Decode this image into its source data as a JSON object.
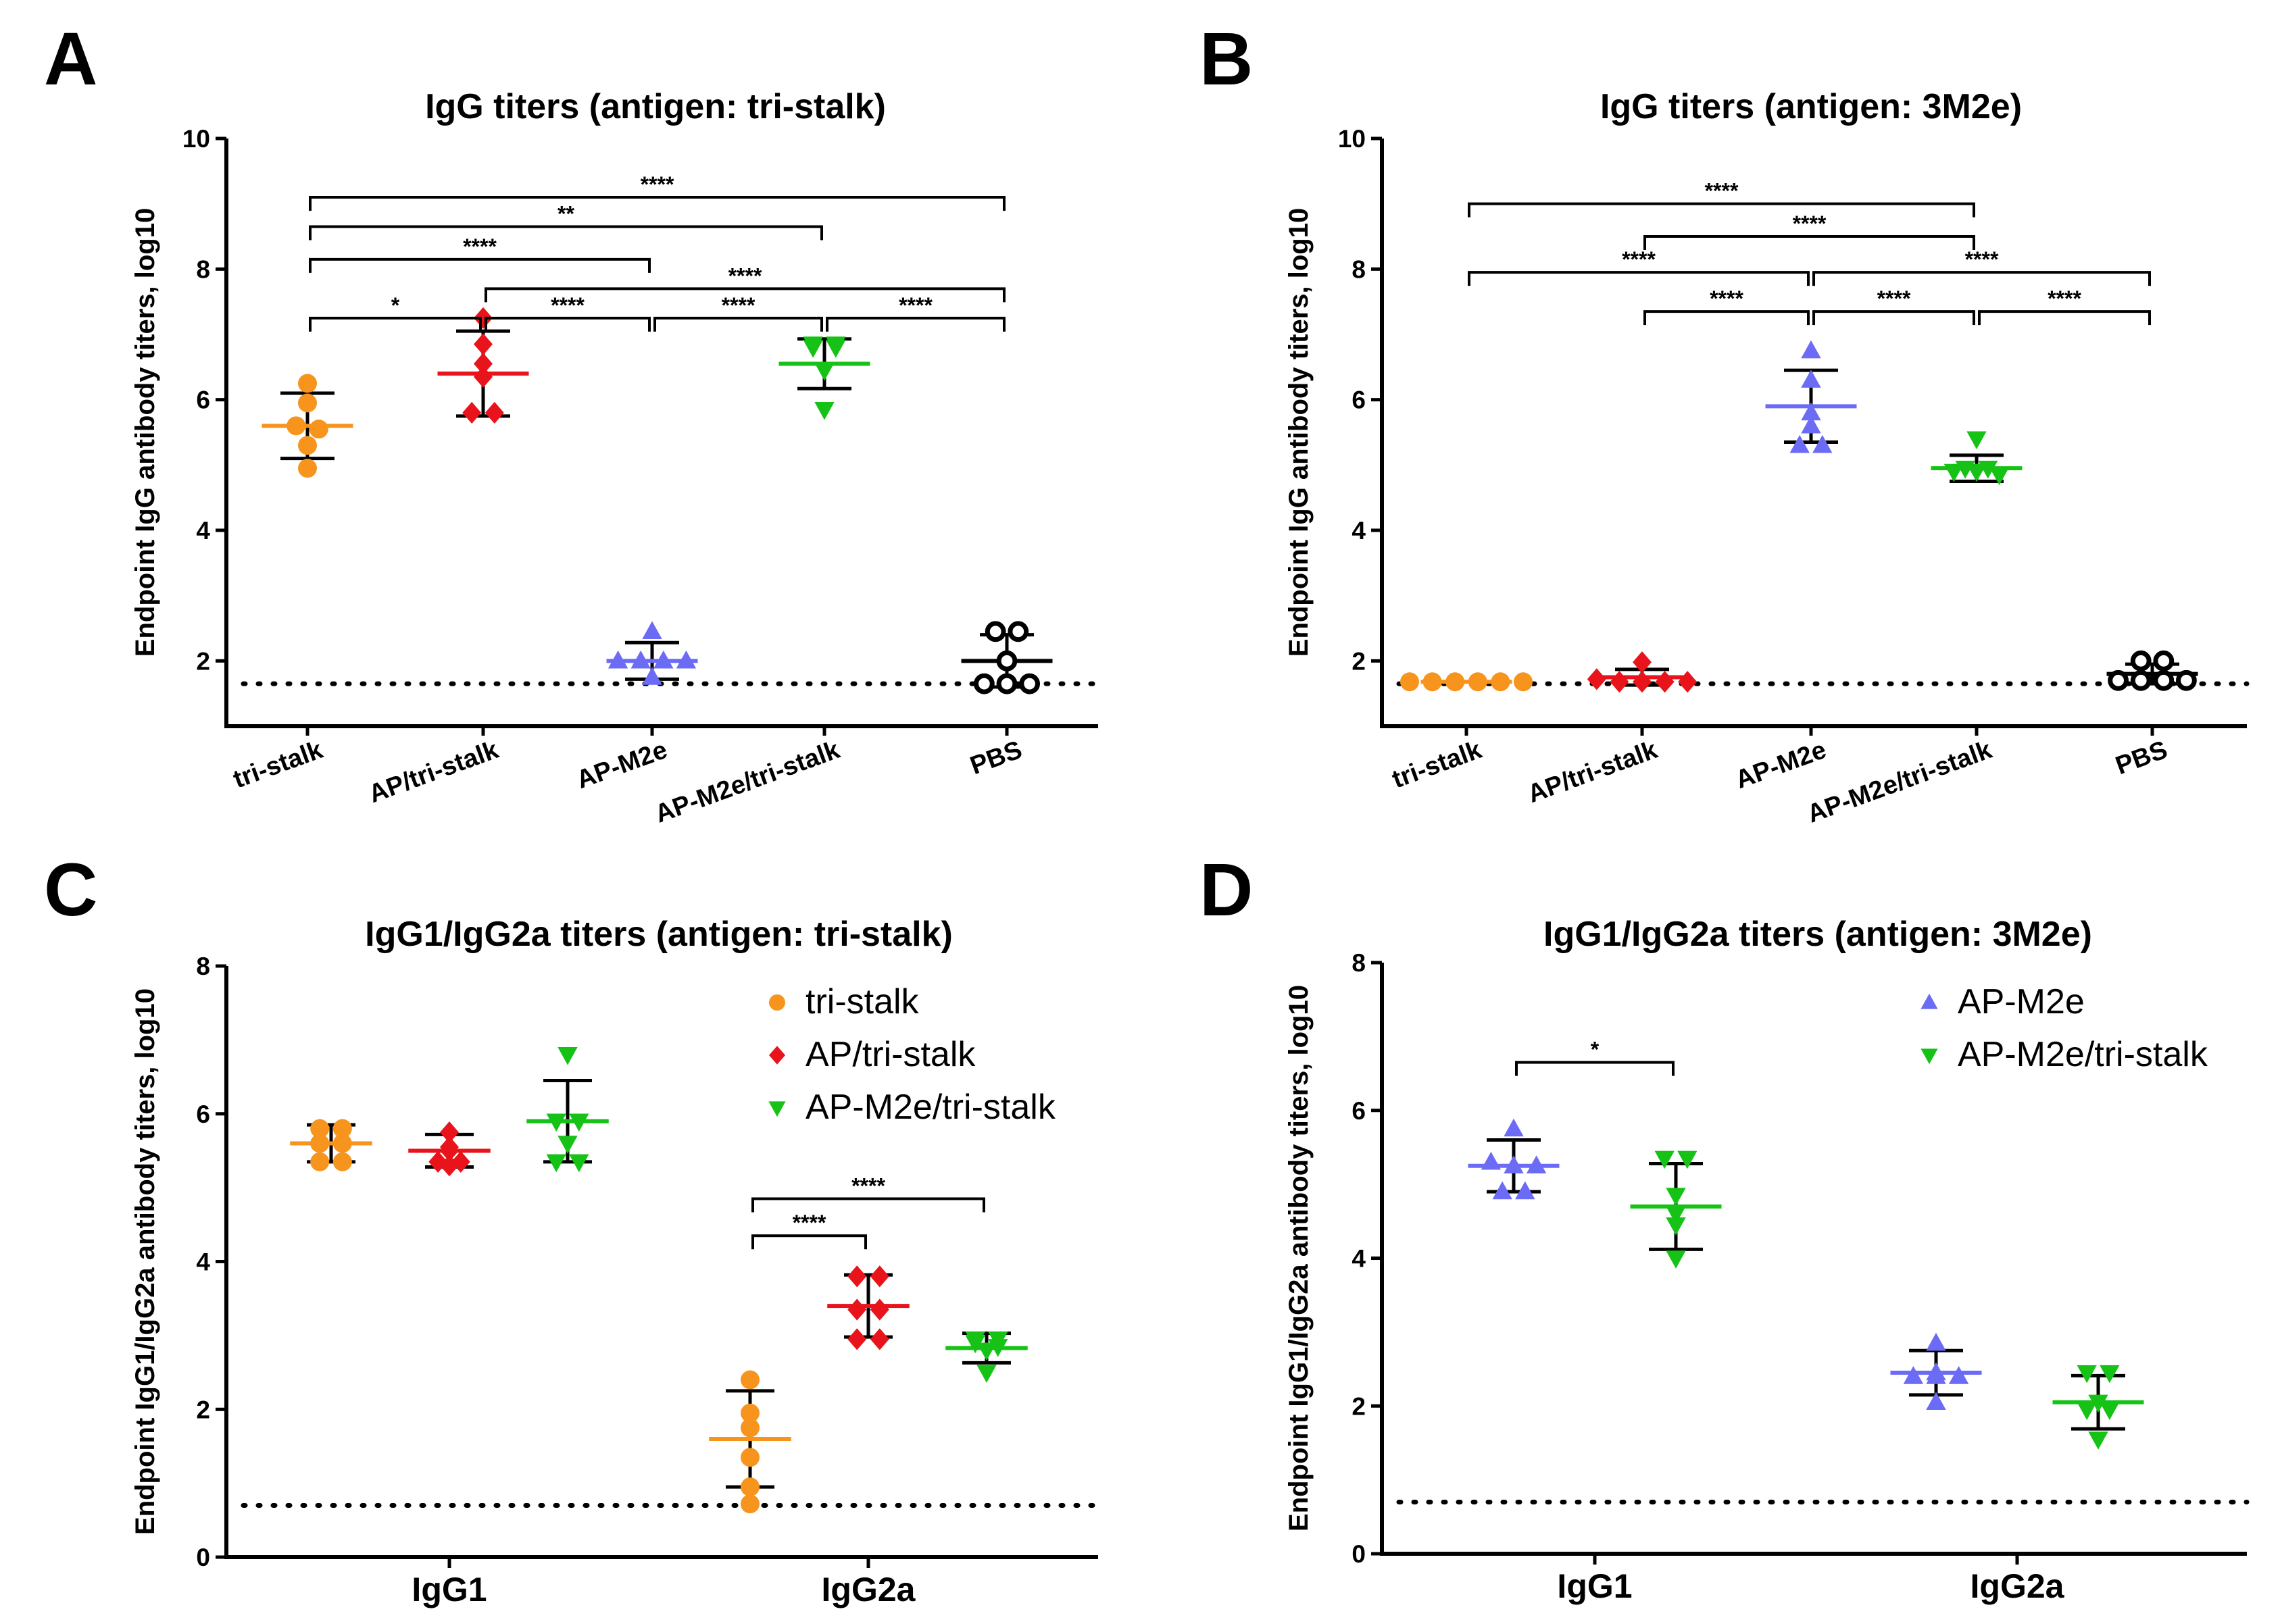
{
  "colors": {
    "tri-stalk": "#F7941D",
    "AP/tri-stalk": "#E8131B",
    "AP-M2e": "#6B6BF5",
    "AP-M2e/tri-stalk": "#17C217",
    "PBS": "#000000"
  },
  "chart_data": [
    {
      "id": "A",
      "type": "scatter",
      "label": "A",
      "title": "IgG titers (antigen: tri-stalk)",
      "xlabel": "",
      "ylabel": "Endpoint IgG antibody titers, log10",
      "ylim": [
        1,
        10
      ],
      "yticks": [
        "2",
        "4",
        "6",
        "8",
        "10"
      ],
      "detection_limit": 1.65,
      "xtick_style": "rotated",
      "categories": [
        "tri-stalk",
        "AP/tri-stalk",
        "AP-M2e",
        "AP-M2e/tri-stalk",
        "PBS"
      ],
      "groups": [
        {
          "name": "tri-stalk",
          "marker": "circle",
          "points": [
            6.25,
            5.95,
            5.6,
            5.55,
            5.3,
            4.95
          ],
          "mean": 5.6,
          "sd": 0.5
        },
        {
          "name": "AP/tri-stalk",
          "marker": "diamond",
          "points": [
            7.25,
            6.85,
            6.55,
            6.35,
            5.8,
            5.8
          ],
          "mean": 6.4,
          "sd": 0.65
        },
        {
          "name": "AP-M2e",
          "marker": "triangle-up",
          "points": [
            2.45,
            2.0,
            2.0,
            2.0,
            2.0,
            1.75
          ],
          "mean": 2.0,
          "sd": 0.28
        },
        {
          "name": "AP-M2e/tri-stalk",
          "marker": "triangle-down",
          "points": [
            6.85,
            6.85,
            6.8,
            6.8,
            6.45,
            5.85
          ],
          "mean": 6.55,
          "sd": 0.38
        },
        {
          "name": "PBS",
          "marker": "open-circle",
          "points": [
            2.45,
            2.45,
            2.0,
            1.65,
            1.65,
            1.65
          ],
          "mean": 2.0,
          "sd": 0.4
        }
      ],
      "brackets": [
        {
          "from": "tri-stalk",
          "to": "PBS",
          "y": 9.1,
          "label": "****"
        },
        {
          "from": "tri-stalk",
          "to": "AP-M2e/tri-stalk",
          "y": 8.65,
          "label": "**"
        },
        {
          "from": "tri-stalk",
          "to": "AP-M2e",
          "y": 8.15,
          "label": "****"
        },
        {
          "from": "AP/tri-stalk",
          "to": "PBS",
          "y": 7.7,
          "label": "****"
        },
        {
          "from": "tri-stalk",
          "to": "AP/tri-stalk",
          "y": 7.25,
          "label": "*"
        },
        {
          "from": "AP/tri-stalk",
          "to": "AP-M2e",
          "y": 7.25,
          "label": "****"
        },
        {
          "from": "AP-M2e",
          "to": "AP-M2e/tri-stalk",
          "y": 7.25,
          "label": "****"
        },
        {
          "from": "AP-M2e/tri-stalk",
          "to": "PBS",
          "y": 7.25,
          "label": "****"
        }
      ]
    },
    {
      "id": "B",
      "type": "scatter",
      "label": "B",
      "title": "IgG titers (antigen: 3M2e)",
      "xlabel": "",
      "ylabel": "Endpoint IgG antibody titers, log10",
      "ylim": [
        1,
        10
      ],
      "yticks": [
        "2",
        "4",
        "6",
        "8",
        "10"
      ],
      "detection_limit": 1.65,
      "xtick_style": "rotated",
      "categories": [
        "tri-stalk",
        "AP/tri-stalk",
        "AP-M2e",
        "AP-M2e/tri-stalk",
        "PBS"
      ],
      "groups": [
        {
          "name": "tri-stalk",
          "marker": "circle",
          "points": [
            1.68,
            1.68,
            1.68,
            1.68,
            1.68,
            1.68
          ],
          "mean": 1.68,
          "sd": 0.0
        },
        {
          "name": "AP/tri-stalk",
          "marker": "diamond",
          "points": [
            1.98,
            1.72,
            1.68,
            1.68,
            1.68,
            1.68
          ],
          "mean": 1.75,
          "sd": 0.12
        },
        {
          "name": "AP-M2e",
          "marker": "triangle-up",
          "points": [
            6.75,
            6.3,
            5.8,
            5.6,
            5.3,
            5.3
          ],
          "mean": 5.9,
          "sd": 0.55
        },
        {
          "name": "AP-M2e/tri-stalk",
          "marker": "triangle-down",
          "points": [
            5.4,
            4.95,
            4.95,
            4.9,
            4.9,
            4.85
          ],
          "mean": 4.95,
          "sd": 0.2
        },
        {
          "name": "PBS",
          "marker": "open-circle",
          "points": [
            2.0,
            2.0,
            1.7,
            1.7,
            1.7,
            1.7
          ],
          "mean": 1.8,
          "sd": 0.15
        }
      ],
      "brackets": [
        {
          "from": "tri-stalk",
          "to": "AP-M2e/tri-stalk",
          "y": 9.0,
          "label": "****"
        },
        {
          "from": "AP/tri-stalk",
          "to": "AP-M2e/tri-stalk",
          "y": 8.5,
          "label": "****"
        },
        {
          "from": "tri-stalk",
          "to": "AP-M2e",
          "y": 7.95,
          "label": "****"
        },
        {
          "from": "AP-M2e",
          "to": "PBS",
          "y": 7.95,
          "label": "****"
        },
        {
          "from": "AP/tri-stalk",
          "to": "AP-M2e",
          "y": 7.35,
          "label": "****"
        },
        {
          "from": "AP-M2e",
          "to": "AP-M2e/tri-stalk",
          "y": 7.35,
          "label": "****"
        },
        {
          "from": "AP-M2e/tri-stalk",
          "to": "PBS",
          "y": 7.35,
          "label": "****"
        }
      ]
    },
    {
      "id": "C",
      "type": "scatter",
      "label": "C",
      "title": "IgG1/IgG2a titers (antigen: tri-stalk)",
      "xlabel": "",
      "ylabel": "Endpoint IgG1/IgG2a antibody titers, log10",
      "ylim": [
        0,
        8
      ],
      "yticks": [
        "0",
        "2",
        "4",
        "6",
        "8"
      ],
      "detection_limit": 0.7,
      "xtick_style": "flat",
      "categories": [
        "IgG1",
        "IgG2a"
      ],
      "legend": [
        "tri-stalk",
        "AP/tri-stalk",
        "AP-M2e/tri-stalk"
      ],
      "groups": [
        {
          "name": "tri-stalk",
          "category": "IgG1",
          "marker": "circle",
          "points": [
            5.8,
            5.8,
            5.6,
            5.6,
            5.35,
            5.35
          ],
          "mean": 5.6,
          "sd": 0.25
        },
        {
          "name": "AP/tri-stalk",
          "category": "IgG1",
          "marker": "diamond",
          "points": [
            5.75,
            5.55,
            5.5,
            5.35,
            5.35,
            5.3
          ],
          "mean": 5.5,
          "sd": 0.22
        },
        {
          "name": "AP-M2e/tri-stalk",
          "category": "IgG1",
          "marker": "triangle-down",
          "points": [
            6.8,
            5.9,
            5.9,
            5.6,
            5.35,
            5.35
          ],
          "mean": 5.9,
          "sd": 0.55
        },
        {
          "name": "tri-stalk",
          "category": "IgG2a",
          "marker": "circle",
          "points": [
            2.4,
            1.95,
            1.75,
            1.35,
            0.95,
            0.72
          ],
          "mean": 1.6,
          "sd": 0.65
        },
        {
          "name": "AP/tri-stalk",
          "category": "IgG2a",
          "marker": "diamond",
          "points": [
            3.8,
            3.8,
            3.35,
            3.35,
            2.95,
            2.95
          ],
          "mean": 3.4,
          "sd": 0.42
        },
        {
          "name": "AP-M2e/tri-stalk",
          "category": "IgG2a",
          "marker": "triangle-down",
          "points": [
            2.95,
            2.95,
            2.9,
            2.85,
            2.8,
            2.5
          ],
          "mean": 2.83,
          "sd": 0.2
        }
      ],
      "brackets": [
        {
          "cat": "IgG2a",
          "from_offset": -1,
          "to_offset": 1,
          "y": 4.85,
          "label": "****"
        },
        {
          "cat": "IgG2a",
          "from_offset": -1,
          "to_offset": 0,
          "y": 4.35,
          "label": "****"
        }
      ]
    },
    {
      "id": "D",
      "type": "scatter",
      "label": "D",
      "title": "IgG1/IgG2a titers (antigen: 3M2e)",
      "xlabel": "",
      "ylabel": "Endpoint IgG1/IgG2a antibody titers, log10",
      "ylim": [
        0,
        8
      ],
      "yticks": [
        "0",
        "2",
        "4",
        "6",
        "8"
      ],
      "detection_limit": 0.7,
      "xtick_style": "flat",
      "categories": [
        "IgG1",
        "IgG2a"
      ],
      "legend": [
        "AP-M2e",
        "AP-M2e/tri-stalk"
      ],
      "groups": [
        {
          "name": "AP-M2e",
          "category": "IgG1",
          "marker": "triangle-up",
          "points": [
            5.75,
            5.3,
            5.25,
            5.25,
            4.9,
            4.9
          ],
          "mean": 5.25,
          "sd": 0.35
        },
        {
          "name": "AP-M2e/tri-stalk",
          "category": "IgG1",
          "marker": "triangle-down",
          "points": [
            5.35,
            5.35,
            4.85,
            4.6,
            4.45,
            4.0
          ],
          "mean": 4.7,
          "sd": 0.58
        },
        {
          "name": "AP-M2e",
          "category": "IgG2a",
          "marker": "triangle-up",
          "points": [
            2.85,
            2.45,
            2.4,
            2.4,
            2.4,
            2.05
          ],
          "mean": 2.45,
          "sd": 0.3
        },
        {
          "name": "AP-M2e/tri-stalk",
          "category": "IgG2a",
          "marker": "triangle-down",
          "points": [
            2.45,
            2.45,
            2.05,
            1.95,
            1.95,
            1.55
          ],
          "mean": 2.05,
          "sd": 0.36
        }
      ],
      "brackets": [
        {
          "cat": "IgG1",
          "from_offset": -0.5,
          "to_offset": 0.5,
          "y": 6.65,
          "label": "*"
        }
      ]
    }
  ]
}
